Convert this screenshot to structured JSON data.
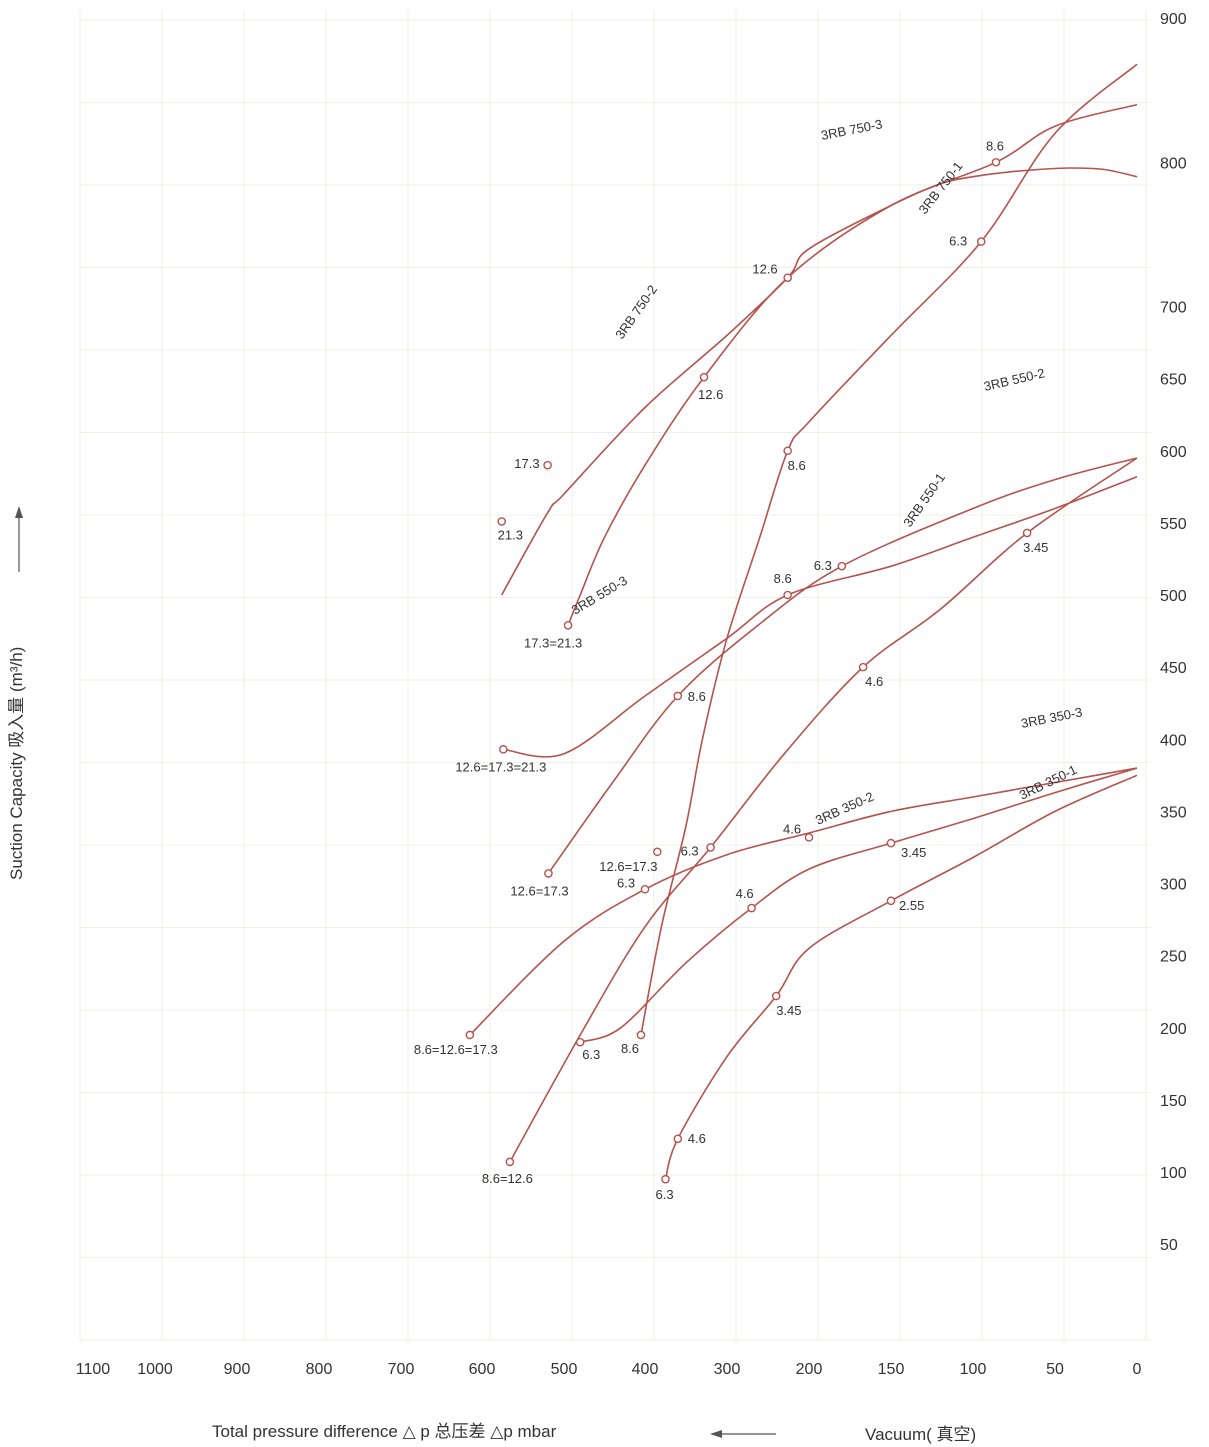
{
  "chart_data": {
    "type": "line",
    "title": "",
    "xlabel": "Total pressure difference △ p 总压差 △p mbar",
    "xlabel_right": "Vacuum( 真空)",
    "ylabel": "Suction Capacity 吸入量 (m³/h)",
    "xlim": [
      1100,
      0
    ],
    "ylim": [
      0,
      900
    ],
    "x_ticks": [
      1100,
      1000,
      900,
      800,
      700,
      600,
      500,
      400,
      300,
      200,
      150,
      100,
      50,
      0
    ],
    "y_ticks": [
      50,
      100,
      150,
      200,
      250,
      300,
      350,
      400,
      450,
      500,
      550,
      600,
      650,
      700,
      800,
      900
    ],
    "grid": true,
    "colors": {
      "curve": "#b5524d",
      "grid": "#eef0e8",
      "text": "#333333",
      "axis_arrow": "#555555"
    },
    "series": [
      {
        "name": "3RB 750-3",
        "curve": [
          [
            0,
            790
          ],
          [
            20,
            795
          ],
          [
            40,
            796
          ],
          [
            60,
            795
          ],
          [
            80,
            793
          ],
          [
            100,
            790
          ],
          [
            120,
            785
          ],
          [
            150,
            770
          ],
          [
            200,
            740
          ],
          [
            226,
            720
          ],
          [
            300,
            680
          ],
          [
            400,
            630
          ],
          [
            500,
            570
          ],
          [
            520,
            557
          ],
          [
            576,
            500
          ]
        ],
        "points": [
          {
            "x": 226,
            "y": 720,
            "label": "12.6"
          },
          {
            "x": 520,
            "y": 590,
            "label": "17.3"
          },
          {
            "x": 576,
            "y": 551,
            "label": "21.3"
          }
        ]
      },
      {
        "name": "3RB 750-2",
        "curve": [
          [
            0,
            840
          ],
          [
            50,
            825
          ],
          [
            86,
            800
          ],
          [
            150,
            770
          ],
          [
            226,
            720
          ],
          [
            328,
            651
          ],
          [
            400,
            590
          ],
          [
            450,
            540
          ],
          [
            480,
            500
          ],
          [
            495,
            479
          ]
        ],
        "points": [
          {
            "x": 86,
            "y": 800,
            "label": "8.6"
          },
          {
            "x": 328,
            "y": 651,
            "label": "12.6"
          },
          {
            "x": 495,
            "y": 479,
            "label": "17.3=21.3"
          }
        ]
      },
      {
        "name": "3RB 750-1",
        "curve": [
          [
            0,
            868
          ],
          [
            50,
            820
          ],
          [
            95,
            745
          ],
          [
            150,
            680
          ],
          [
            200,
            620
          ],
          [
            226,
            600
          ],
          [
            260,
            540
          ],
          [
            300,
            470
          ],
          [
            330,
            400
          ],
          [
            350,
            340
          ],
          [
            380,
            270
          ],
          [
            405,
            195
          ]
        ],
        "points": [
          {
            "x": 95,
            "y": 745,
            "label": "6.3"
          },
          {
            "x": 226,
            "y": 600,
            "label": "8.6"
          },
          {
            "x": 385,
            "y": 322,
            "label": "12.6=17.3"
          },
          {
            "x": 405,
            "y": 195,
            "label": "8.6"
          }
        ]
      },
      {
        "name": "3RB 550-3",
        "curve": [
          [
            0,
            582
          ],
          [
            50,
            560
          ],
          [
            100,
            540
          ],
          [
            150,
            520
          ],
          [
            226,
            500
          ],
          [
            300,
            470
          ],
          [
            400,
            430
          ],
          [
            500,
            390
          ],
          [
            574,
            393
          ]
        ],
        "points": [
          {
            "x": 226,
            "y": 500,
            "label": "8.6"
          },
          {
            "x": 574,
            "y": 393,
            "label": "12.6=17.3=21.3"
          }
        ]
      },
      {
        "name": "3RB 550-2",
        "curve": [
          [
            0,
            595
          ],
          [
            50,
            580
          ],
          [
            100,
            560
          ],
          [
            180,
            520
          ],
          [
            260,
            480
          ],
          [
            360,
            430
          ],
          [
            440,
            370
          ],
          [
            519,
            307
          ]
        ],
        "points": [
          {
            "x": 180,
            "y": 520,
            "label": "6.3"
          },
          {
            "x": 360,
            "y": 430,
            "label": "8.6"
          },
          {
            "x": 519,
            "y": 307,
            "label": "12.6=17.3"
          }
        ]
      },
      {
        "name": "3RB 550-1",
        "curve": [
          [
            0,
            595
          ],
          [
            67,
            543
          ],
          [
            120,
            490
          ],
          [
            167,
            450
          ],
          [
            230,
            390
          ],
          [
            320,
            325
          ],
          [
            400,
            270
          ],
          [
            480,
            195
          ],
          [
            566,
            107
          ]
        ],
        "points": [
          {
            "x": 67,
            "y": 543,
            "label": "3.45"
          },
          {
            "x": 167,
            "y": 450,
            "label": "4.6"
          },
          {
            "x": 320,
            "y": 325,
            "label": "6.3"
          },
          {
            "x": 480,
            "y": 190,
            "label": "6.3"
          },
          {
            "x": 566,
            "y": 107,
            "label": "8.6=12.6"
          }
        ]
      },
      {
        "name": "3RB 350-3",
        "curve": [
          [
            0,
            380
          ],
          [
            50,
            370
          ],
          [
            100,
            360
          ],
          [
            150,
            350
          ],
          [
            200,
            335
          ],
          [
            300,
            320
          ],
          [
            400,
            296
          ],
          [
            500,
            260
          ],
          [
            615,
            195
          ]
        ],
        "points": [
          {
            "x": 200,
            "y": 332,
            "label": "4.6"
          },
          {
            "x": 400,
            "y": 296,
            "label": "6.3"
          },
          {
            "x": 615,
            "y": 195,
            "label": "8.6=12.6=17.3"
          }
        ]
      },
      {
        "name": "3RB 350-2",
        "curve": [
          [
            0,
            380
          ],
          [
            50,
            363
          ],
          [
            100,
            345
          ],
          [
            150,
            328
          ],
          [
            200,
            310
          ],
          [
            270,
            283
          ],
          [
            350,
            245
          ],
          [
            430,
            200
          ],
          [
            480,
            190
          ]
        ],
        "points": [
          {
            "x": 150,
            "y": 328,
            "label": "3.45"
          },
          {
            "x": 270,
            "y": 283,
            "label": "4.6"
          }
        ]
      },
      {
        "name": "3RB 350-1",
        "curve": [
          [
            0,
            375
          ],
          [
            50,
            350
          ],
          [
            100,
            318
          ],
          [
            150,
            288
          ],
          [
            200,
            255
          ],
          [
            240,
            222
          ],
          [
            300,
            180
          ],
          [
            360,
            123
          ],
          [
            375,
            95
          ]
        ],
        "points": [
          {
            "x": 150,
            "y": 288,
            "label": "2.55"
          },
          {
            "x": 240,
            "y": 222,
            "label": "3.45"
          },
          {
            "x": 360,
            "y": 123,
            "label": "4.6"
          },
          {
            "x": 375,
            "y": 95,
            "label": "6.3"
          }
        ]
      }
    ]
  }
}
